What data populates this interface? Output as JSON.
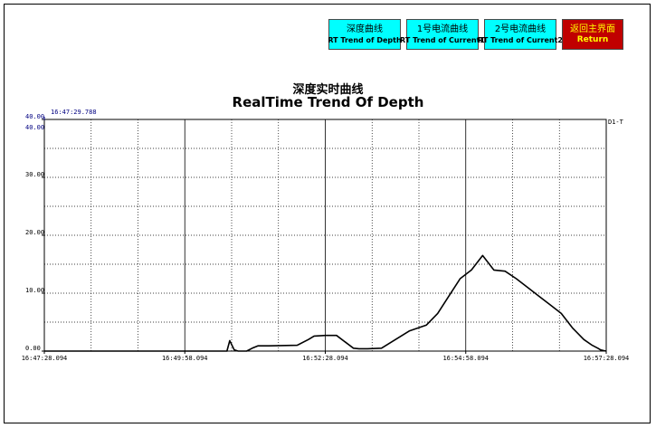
{
  "buttons": [
    {
      "line1": "深度曲线",
      "line2": "RT Trend of Depth",
      "color": "#00ffff"
    },
    {
      "line1": "1号电流曲线",
      "line2": "RT Trend of Current1",
      "color": "#00ffff"
    },
    {
      "line1": "2号电流曲线",
      "line2": "RT Trend of Current2",
      "color": "#00ffff"
    },
    {
      "line1": "返回主界面",
      "line2": "Return",
      "color": "#c00000"
    }
  ],
  "title_cn": "深度实时曲线",
  "title_en": "RealTime Trend Of Depth",
  "cursor_time": "16:47:29.788",
  "axis_top_label": "40.00",
  "series_label": "D1-T",
  "chart_data": {
    "type": "line",
    "ylim": [
      0,
      40
    ],
    "y_ticks": [
      "40.00",
      "30.00",
      "20.00",
      "10.00",
      "0.00"
    ],
    "x_ticks": [
      "16:47:28.094",
      "16:49:58.094",
      "16:52:28.094",
      "16:54:58.094",
      "16:57:28.094"
    ],
    "x_minutes_range": [
      0,
      10
    ],
    "series": [
      {
        "color": "#000000",
        "x": [
          0,
          3.0,
          3.25,
          3.3,
          3.38,
          3.45,
          3.6,
          3.7,
          3.8,
          4.0,
          4.5,
          4.7,
          4.8,
          5.0,
          5.2,
          5.5,
          5.6,
          5.75,
          6.0,
          6.5,
          6.8,
          7.0,
          7.2,
          7.4,
          7.6,
          7.8,
          8.0,
          8.2,
          8.4,
          8.6,
          8.8,
          9.0,
          9.2,
          9.4,
          9.6,
          9.75,
          9.85,
          9.9,
          9.95,
          10.0
        ],
        "y": [
          0,
          0,
          0,
          1.8,
          0.2,
          0,
          0,
          0.5,
          0.9,
          0.9,
          1.0,
          2.0,
          2.6,
          2.7,
          2.7,
          0.5,
          0.4,
          0.4,
          0.5,
          3.5,
          4.5,
          6.5,
          9.5,
          12.5,
          14.0,
          16.5,
          14.0,
          13.8,
          12.5,
          11.0,
          9.5,
          8.0,
          6.5,
          4.0,
          2.0,
          1.0,
          0.5,
          0.2,
          0.1,
          0
        ]
      }
    ]
  }
}
